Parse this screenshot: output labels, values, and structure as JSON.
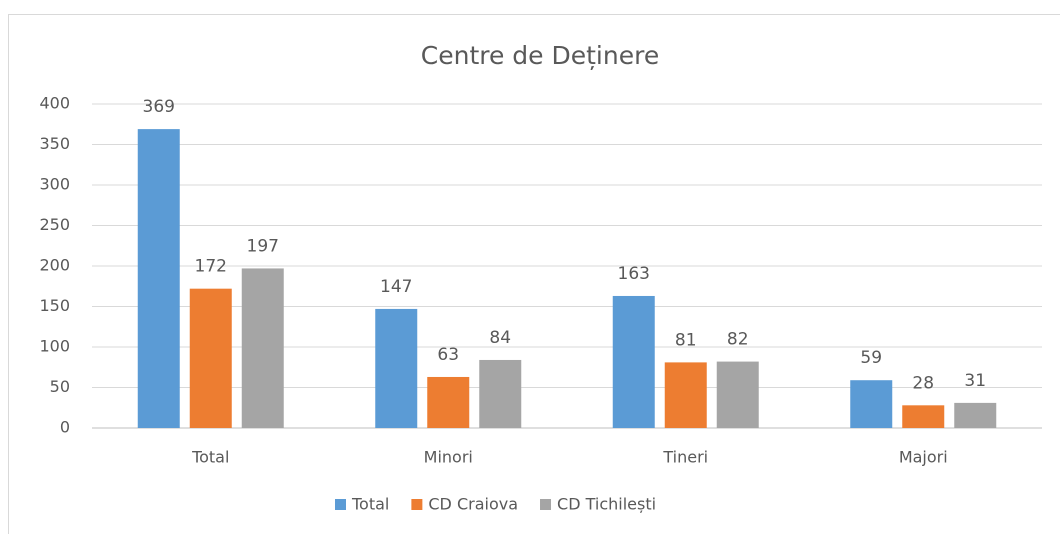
{
  "chart_data": {
    "type": "bar",
    "title": "Centre de Deținere",
    "categories": [
      "Total",
      "Minori",
      "Tineri",
      "Majori"
    ],
    "series": [
      {
        "name": "Total",
        "color": "#5b9bd5",
        "values": [
          369,
          147,
          163,
          59
        ]
      },
      {
        "name": "CD Craiova",
        "color": "#ed7d31",
        "values": [
          172,
          63,
          81,
          28
        ]
      },
      {
        "name": "CD Tichilești",
        "color": "#a5a5a5",
        "values": [
          197,
          84,
          82,
          31
        ]
      }
    ],
    "ylim": [
      0,
      400
    ],
    "yticks": [
      0,
      50,
      100,
      150,
      200,
      250,
      300,
      350,
      400
    ],
    "grid": true,
    "legend": "bottom"
  }
}
